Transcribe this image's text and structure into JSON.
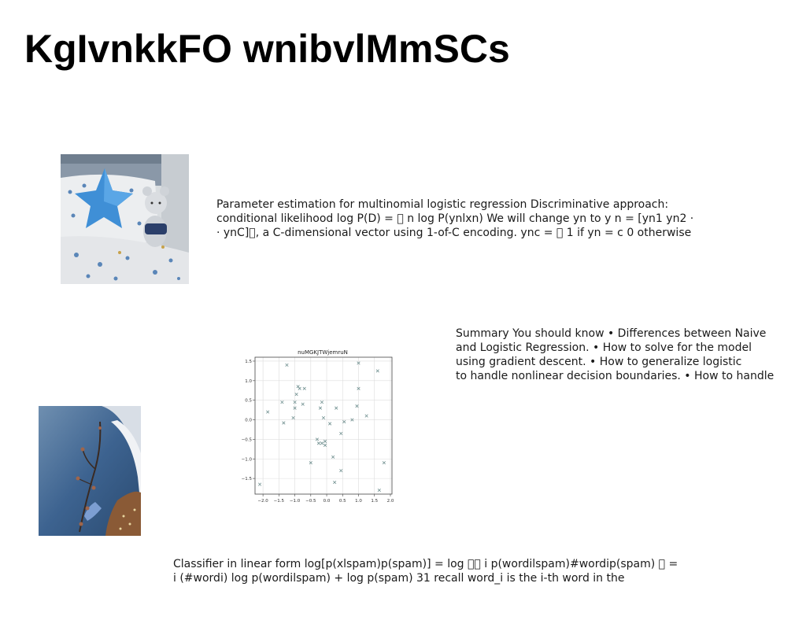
{
  "slide": {
    "title": "KgIvnkkFO wnibvlMmSCs",
    "paragraph_1": {
      "lines": [
        "Parameter estimation for multinomial logistic regression Discriminative approach:",
        "conditional likelihood log P(D) = \u0000 n log P(ynlxn) We will change yn to y n = [yn1 yn2 ·",
        "· ynC]\u0000, a C-dimensional vector using 1-of-C encoding. ync = \u0000 1 if yn = c 0 otherwise"
      ]
    },
    "paragraph_2": {
      "lines": [
        "Summary You should know • Differences between Naive",
        "and Logistic Regression. • How to solve for the model",
        "using gradient descent. • How to generalize logistic",
        "to handle nonlinear decision boundaries. • How to handle"
      ]
    },
    "paragraph_3": {
      "lines": [
        "Classifier in linear form log[p(xlspam)p(spam)] = log \u0000\u0000 i p(wordilspam)#wordip(spam) \u0000 =",
        "i (#wordi) log p(wordilspam) + log p(spam) 31 recall word_i is the i-th word in the"
      ]
    }
  },
  "chart_data": {
    "type": "scatter",
    "title": "nuMGKJTWjemruN",
    "xlabel": "",
    "ylabel": "",
    "xlim": [
      -2.25,
      2.05
    ],
    "ylim": [
      -1.9,
      1.6
    ],
    "xticks": [
      "−2.0",
      "−1.5",
      "−1.0",
      "−0.5",
      "0.0",
      "0.5",
      "1.0",
      "1.5",
      "2.0"
    ],
    "xtick_values": [
      -2.0,
      -1.5,
      -1.0,
      -0.5,
      0.0,
      0.5,
      1.0,
      1.5,
      2.0
    ],
    "yticks": [
      "1.5",
      "1.0",
      "0.5",
      "0.0",
      "−0.5",
      "−1.0",
      "−1.5"
    ],
    "ytick_values": [
      1.5,
      1.0,
      0.5,
      0.0,
      -0.5,
      -1.0,
      -1.5
    ],
    "grid": true,
    "marker": "x",
    "color": "#6f8f8f",
    "series": [
      {
        "points": [
          [
            -2.1,
            -1.65
          ],
          [
            -1.85,
            0.2
          ],
          [
            -1.4,
            0.45
          ],
          [
            -1.35,
            -0.08
          ],
          [
            -1.25,
            1.4
          ],
          [
            -1.05,
            0.05
          ],
          [
            -1.0,
            0.3
          ],
          [
            -1.0,
            0.45
          ],
          [
            -0.95,
            0.65
          ],
          [
            -0.9,
            0.85
          ],
          [
            -0.85,
            0.8
          ],
          [
            -0.75,
            0.4
          ],
          [
            -0.7,
            0.8
          ],
          [
            -0.5,
            -1.1
          ],
          [
            -0.3,
            -0.5
          ],
          [
            -0.25,
            -0.6
          ],
          [
            -0.2,
            0.3
          ],
          [
            -0.15,
            0.45
          ],
          [
            -0.15,
            -0.6
          ],
          [
            -0.1,
            0.05
          ],
          [
            -0.05,
            -0.55
          ],
          [
            -0.05,
            -0.65
          ],
          [
            0.1,
            -0.1
          ],
          [
            0.2,
            -0.95
          ],
          [
            0.25,
            -1.6
          ],
          [
            0.3,
            0.3
          ],
          [
            0.45,
            -0.35
          ],
          [
            0.45,
            -1.3
          ],
          [
            0.55,
            -0.05
          ],
          [
            0.8,
            0.0
          ],
          [
            0.95,
            0.35
          ],
          [
            1.0,
            1.45
          ],
          [
            1.0,
            0.8
          ],
          [
            1.25,
            0.1
          ],
          [
            1.6,
            1.25
          ],
          [
            1.65,
            -1.8
          ],
          [
            1.8,
            -1.1
          ]
        ]
      }
    ]
  },
  "images": {
    "photo_1": "pillow-and-plush-toy-photo",
    "photo_2": "winter-branch-photo"
  }
}
